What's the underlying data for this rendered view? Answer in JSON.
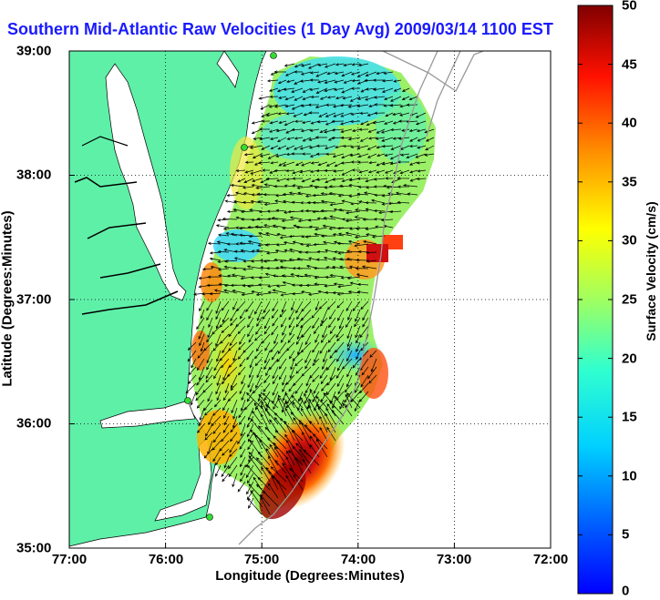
{
  "title": "Southern Mid-Atlantic Raw Velocities (1 Day Avg) 2009/03/14 1100 EST",
  "axes": {
    "xlabel": "Longitude (Degrees:Minutes)",
    "ylabel": "Latitude (Degrees:Minutes)",
    "x_ticks": [
      "77:00",
      "76:00",
      "75:00",
      "74:00",
      "73:00",
      "72:00"
    ],
    "y_ticks": [
      "39:00",
      "38:00",
      "37:00",
      "36:00",
      "35:00"
    ]
  },
  "colorbar": {
    "label": "Surface Velocity (cm/s)",
    "ticks": [
      "50",
      "45",
      "40",
      "35",
      "30",
      "25",
      "20",
      "15",
      "10",
      "5",
      "0"
    ],
    "min": 0,
    "max": 50,
    "colormap": "jet"
  },
  "colors": {
    "land": "#5ff0a8",
    "title": "#1a1aff",
    "station": "#33dd33"
  }
}
